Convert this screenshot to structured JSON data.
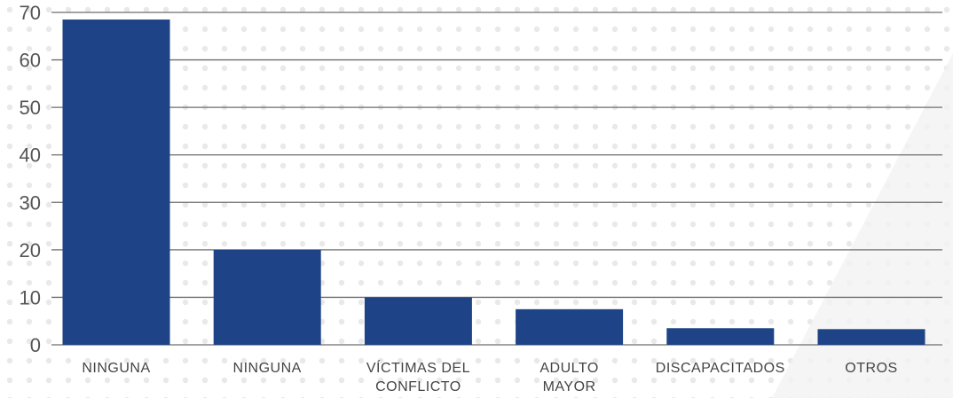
{
  "chart_data": {
    "type": "bar",
    "categories": [
      [
        "NINGUNA"
      ],
      [
        "NINGUNA"
      ],
      [
        "VÍCTIMAS DEL",
        "CONFLICTO"
      ],
      [
        "ADULTO",
        "MAYOR"
      ],
      [
        "DISCAPACITADOS"
      ],
      [
        "OTROS"
      ]
    ],
    "values": [
      68.5,
      20,
      10,
      7.5,
      3.5,
      3.3
    ],
    "yticks": [
      0,
      10,
      20,
      30,
      40,
      50,
      60,
      70
    ],
    "ylim": [
      0,
      70
    ],
    "grid": true,
    "legend": "none"
  },
  "colors": {
    "bar": "#1e4386",
    "grid": "#6e6e6e",
    "text": "#555555",
    "background_dots": "#e6e6e6"
  }
}
